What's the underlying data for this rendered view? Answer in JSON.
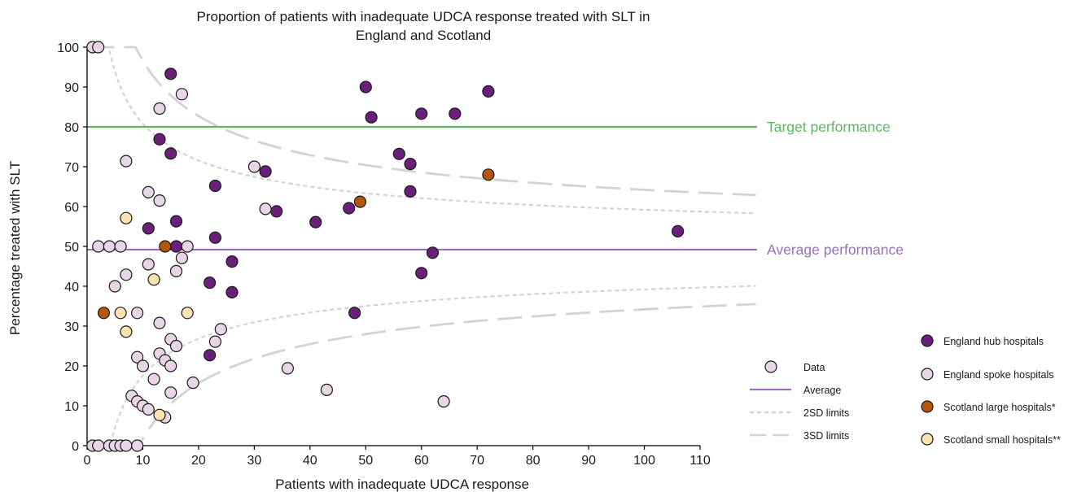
{
  "chart_data": {
    "type": "scatter",
    "title_lines": [
      "Proportion of patients with inadequate UDCA response treated with SLT in",
      "England and Scotland"
    ],
    "xlabel": "Patients with inadequate UDCA response",
    "ylabel": "Percentage treated with SLT",
    "xlim": [
      0,
      110
    ],
    "ylim": [
      0,
      100
    ],
    "xticks": [
      0,
      10,
      20,
      30,
      40,
      50,
      60,
      70,
      80,
      90,
      100,
      110
    ],
    "yticks": [
      0,
      10,
      20,
      30,
      40,
      50,
      60,
      70,
      80,
      90,
      100
    ],
    "grid": false,
    "reference_lines": [
      {
        "label": "Target performance",
        "y": 80,
        "color": "#5cb85c"
      },
      {
        "label": "Average performance",
        "y": 49.2,
        "color": "#9b6fbf"
      }
    ],
    "control_limits": {
      "mean": 49.2,
      "color": "#d3d3d3",
      "limits_2sd": {
        "label": "2SD limits",
        "dash": "short"
      },
      "limits_3sd": {
        "label": "3SD limits",
        "dash": "long"
      }
    },
    "style_legend": [
      {
        "label": "Data",
        "kind": "marker",
        "color": "#e8d5e8"
      },
      {
        "label": "Average",
        "kind": "line",
        "color": "#9b6fbf"
      },
      {
        "label": "2SD limits",
        "kind": "short-dash",
        "color": "#d3d3d3"
      },
      {
        "label": "3SD limits",
        "kind": "long-dash",
        "color": "#d3d3d3"
      }
    ],
    "series": [
      {
        "name": "England hub hospitals",
        "color": "#6a1f7a",
        "points": [
          [
            15,
            93.3
          ],
          [
            13,
            76.9
          ],
          [
            15,
            73.3
          ],
          [
            11,
            54.5
          ],
          [
            16,
            56.3
          ],
          [
            16,
            50
          ],
          [
            23,
            65.2
          ],
          [
            23,
            52.2
          ],
          [
            22,
            40.9
          ],
          [
            22,
            22.7
          ],
          [
            26,
            46.2
          ],
          [
            26,
            38.5
          ],
          [
            32,
            68.8
          ],
          [
            34,
            58.8
          ],
          [
            41,
            56.1
          ],
          [
            47,
            59.6
          ],
          [
            48,
            33.3
          ],
          [
            50,
            90
          ],
          [
            51,
            82.4
          ],
          [
            56,
            73.2
          ],
          [
            58,
            70.7
          ],
          [
            58,
            63.8
          ],
          [
            60,
            83.3
          ],
          [
            60,
            43.3
          ],
          [
            62,
            48.4
          ],
          [
            66,
            83.3
          ],
          [
            72,
            88.9
          ],
          [
            106,
            53.8
          ]
        ]
      },
      {
        "name": "England spoke hospitals",
        "color": "#e8d5e8",
        "points": [
          [
            1,
            100
          ],
          [
            2,
            100
          ],
          [
            2,
            50
          ],
          [
            4,
            50
          ],
          [
            6,
            50
          ],
          [
            7,
            71.4
          ],
          [
            7,
            42.9
          ],
          [
            5,
            40
          ],
          [
            9,
            33.3
          ],
          [
            13,
            84.6
          ],
          [
            17,
            88.2
          ],
          [
            11,
            63.6
          ],
          [
            13,
            61.5
          ],
          [
            11,
            45.5
          ],
          [
            16,
            43.8
          ],
          [
            17,
            47.1
          ],
          [
            18,
            50
          ],
          [
            13,
            30.8
          ],
          [
            15,
            26.7
          ],
          [
            16,
            25
          ],
          [
            13,
            23.1
          ],
          [
            14,
            21.4
          ],
          [
            15,
            20
          ],
          [
            9,
            22.2
          ],
          [
            10,
            20
          ],
          [
            12,
            16.7
          ],
          [
            8,
            12.5
          ],
          [
            9,
            11.1
          ],
          [
            10,
            10
          ],
          [
            11,
            9.1
          ],
          [
            14,
            7.1
          ],
          [
            15,
            13.3
          ],
          [
            19,
            15.8
          ],
          [
            23,
            26.1
          ],
          [
            24,
            29.2
          ],
          [
            30,
            70
          ],
          [
            32,
            59.4
          ],
          [
            36,
            19.4
          ],
          [
            43,
            14
          ],
          [
            64,
            11.1
          ],
          [
            1,
            0
          ],
          [
            2,
            0
          ],
          [
            4,
            0
          ],
          [
            5,
            0
          ],
          [
            6,
            0
          ],
          [
            7,
            0
          ],
          [
            9,
            0
          ]
        ]
      },
      {
        "name": "Scotland large hospitals*",
        "color": "#b5560f",
        "points": [
          [
            3,
            33.3
          ],
          [
            14,
            50
          ],
          [
            49,
            61.2
          ],
          [
            72,
            68
          ]
        ]
      },
      {
        "name": "Scotland small hospitals**",
        "color": "#fde3b4",
        "points": [
          [
            7,
            57.1
          ],
          [
            12,
            41.7
          ],
          [
            6,
            33.3
          ],
          [
            18,
            33.3
          ],
          [
            7,
            28.6
          ],
          [
            13,
            7.7
          ]
        ]
      }
    ]
  }
}
